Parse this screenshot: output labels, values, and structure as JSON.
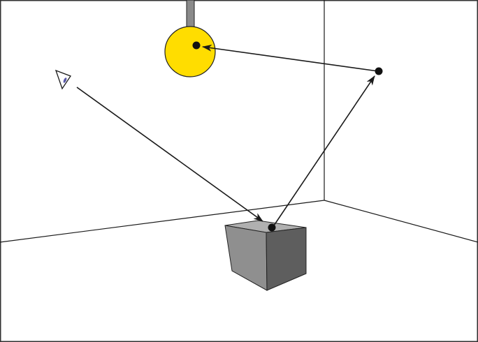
{
  "figure": {
    "description_visible_text": [],
    "colors": {
      "background": "#ffffff",
      "frame": "#333333",
      "room_lines": "#1a1a1a",
      "light_fill": "#ffdd00",
      "light_stroke": "#222222",
      "light_stem": "#8a8a8a",
      "box_top": "#b0b0b0",
      "box_front_left": "#8f8f8f",
      "box_front_right": "#5e5e5e",
      "ray": "#1a1a1a",
      "point": "#111111",
      "eye_accent": "#5a5aa8"
    },
    "elements": {
      "light_source": "lamp",
      "camera": "eye-icon",
      "object": "cube",
      "bounce_point": "secondary-point"
    }
  }
}
